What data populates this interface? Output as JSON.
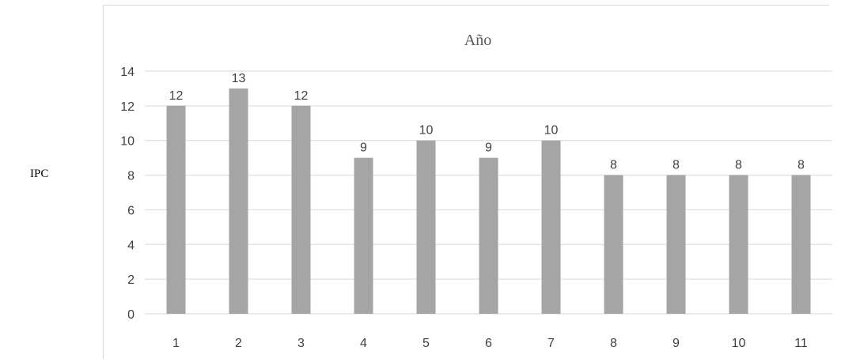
{
  "side_label": "IPC",
  "chart_data": {
    "type": "bar",
    "title": "Año",
    "categories": [
      "1",
      "2",
      "3",
      "4",
      "5",
      "6",
      "7",
      "8",
      "9",
      "10",
      "11"
    ],
    "values": [
      12,
      13,
      12,
      9,
      10,
      9,
      10,
      8,
      8,
      8,
      8
    ],
    "xlabel": "",
    "ylabel": "",
    "ylim": [
      0,
      14
    ],
    "yticks": [
      0,
      2,
      4,
      6,
      8,
      10,
      12,
      14
    ],
    "grid": true,
    "legend": "none",
    "bar_color": "#a5a5a5",
    "grid_color": "#d9d9d9"
  }
}
